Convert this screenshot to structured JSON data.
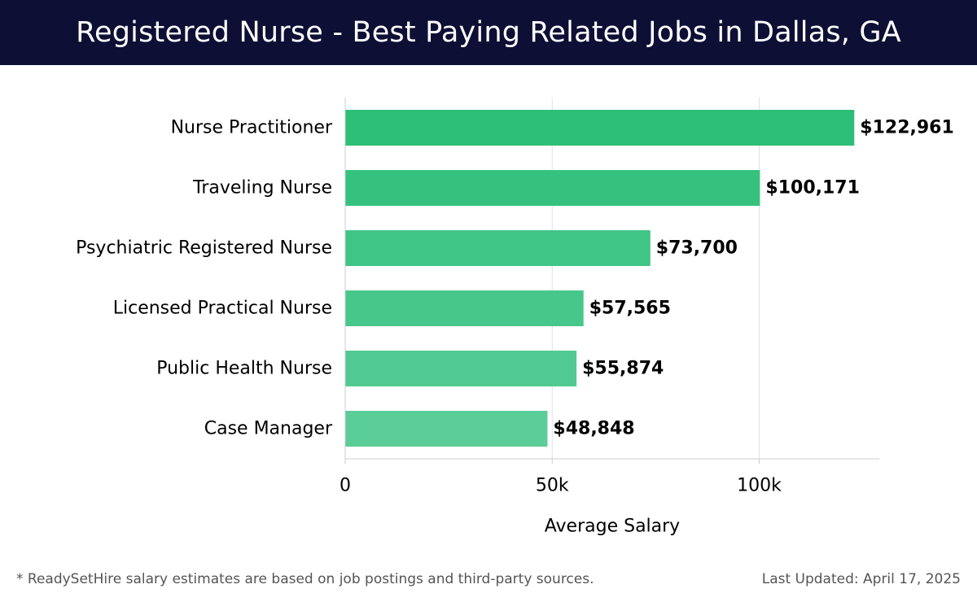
{
  "header": {
    "title": "Registered Nurse - Best Paying Related Jobs in Dallas, GA"
  },
  "chart_data": {
    "type": "bar",
    "orientation": "horizontal",
    "title": "Registered Nurse - Best Paying Related Jobs in Dallas, GA",
    "categories": [
      "Nurse Practitioner",
      "Traveling Nurse",
      "Psychiatric Registered Nurse",
      "Licensed Practical Nurse",
      "Public Health Nurse",
      "Case Manager"
    ],
    "values": [
      122961,
      100171,
      73700,
      57565,
      55874,
      48848
    ],
    "value_labels": [
      "$122,961",
      "$100,171",
      "$73,700",
      "$57,565",
      "$55,874",
      "$48,848"
    ],
    "xlabel": "Average Salary",
    "ylabel": "",
    "xlim": [
      0,
      129000
    ],
    "x_ticks": [
      0,
      50000,
      100000
    ],
    "x_tick_labels": [
      "0",
      "50k",
      "100k"
    ],
    "grid": true,
    "colors": {
      "bar_top": "#2dbf78",
      "bar_bottom": "#5acd98",
      "grid": "#e2e2e2",
      "axis": "#cccccc",
      "text": "#000000"
    }
  },
  "footer": {
    "note": "* ReadySetHire salary estimates are based on job postings and third-party sources.",
    "updated": "Last Updated: April 17, 2025"
  }
}
